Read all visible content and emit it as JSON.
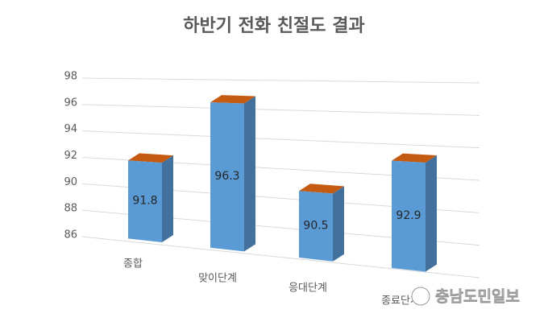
{
  "chart_data": {
    "type": "bar",
    "title": "하반기 전화 친절도 결과",
    "categories": [
      "종합",
      "맞이단계",
      "응대단계",
      "종료단계"
    ],
    "values": [
      91.8,
      96.3,
      90.5,
      92.9
    ],
    "color": "#5b9bd5",
    "side_color": "#41719c",
    "top_color": "#c55a11",
    "ylim": [
      86,
      98
    ],
    "yticks": [
      86,
      88,
      90,
      92,
      94,
      96,
      98
    ],
    "grid": true
  },
  "watermark": "충남도민일보"
}
